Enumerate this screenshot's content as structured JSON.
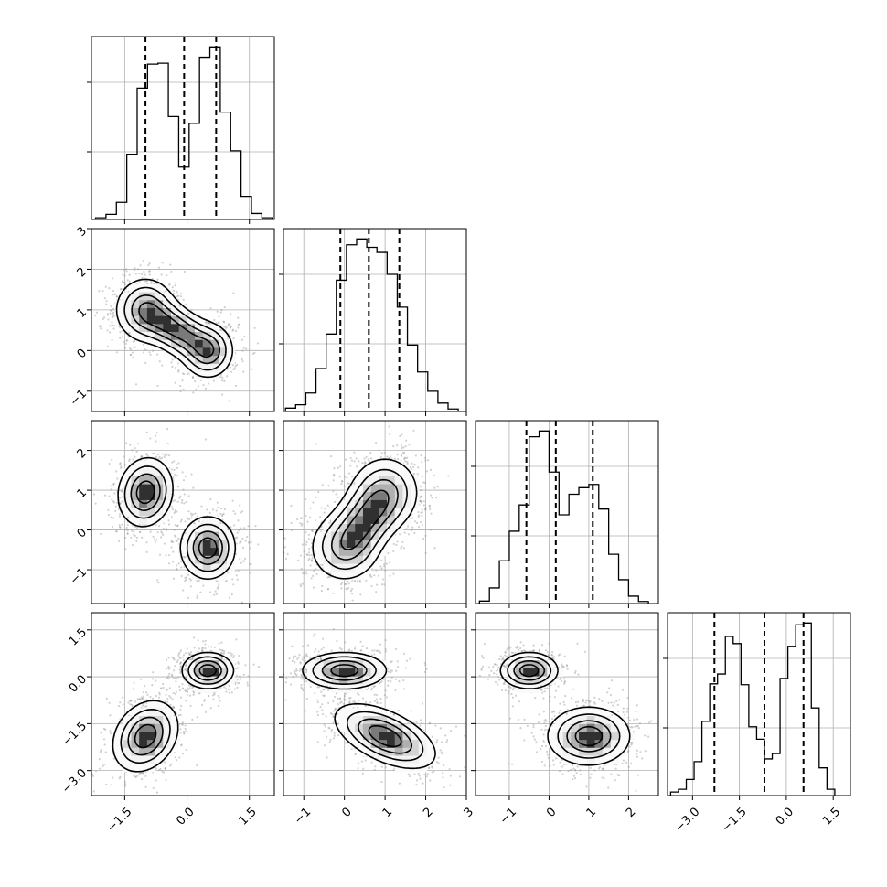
{
  "chart_data": {
    "type": "corner",
    "params": 4,
    "axis_ranges": [
      [
        -2.3,
        2.1
      ],
      [
        -1.5,
        3.0
      ],
      [
        -1.85,
        2.75
      ],
      [
        -3.8,
        2.05
      ]
    ],
    "tick_values": [
      [
        -1.5,
        0.0,
        1.5
      ],
      [
        -1,
        0,
        1,
        2,
        3
      ],
      [
        -1,
        0,
        1,
        2
      ],
      [
        -3.0,
        -1.5,
        0.0,
        1.5
      ]
    ],
    "tick_labels": [
      [
        "−1.5",
        "0.0",
        "1.5"
      ],
      [
        "−1",
        "0",
        "1",
        "2",
        "3"
      ],
      [
        "−1",
        "0",
        "1",
        "2"
      ],
      [
        "−3.0",
        "−1.5",
        "0.0",
        "1.5"
      ]
    ],
    "grid": true,
    "histograms": [
      {
        "param": 0,
        "bins": [
          -2.2,
          -1.95,
          -1.7,
          -1.45,
          -1.2,
          -0.95,
          -0.7,
          -0.45,
          -0.2,
          0.05,
          0.3,
          0.55,
          0.8,
          1.05,
          1.3,
          1.55,
          1.8,
          2.05
        ],
        "counts": [
          20,
          60,
          200,
          760,
          1530,
          1810,
          1820,
          1200,
          610,
          1120,
          1890,
          2010,
          1250,
          800,
          270,
          70,
          20
        ],
        "quantiles": [
          -1.0,
          -0.07,
          0.7
        ]
      },
      {
        "param": 1,
        "bins": [
          -1.45,
          -1.2,
          -0.95,
          -0.7,
          -0.45,
          -0.2,
          0.05,
          0.3,
          0.55,
          0.8,
          1.05,
          1.3,
          1.55,
          1.8,
          2.05,
          2.3,
          2.55,
          2.8
        ],
        "counts": [
          40,
          80,
          220,
          510,
          920,
          1560,
          1980,
          2050,
          1950,
          1890,
          1630,
          1240,
          790,
          470,
          240,
          100,
          30
        ],
        "quantiles": [
          -0.1,
          0.6,
          1.35
        ]
      },
      {
        "param": 2,
        "bins": [
          -1.75,
          -1.5,
          -1.25,
          -1.0,
          -0.75,
          -0.5,
          -0.25,
          0.0,
          0.25,
          0.5,
          0.75,
          1.0,
          1.25,
          1.5,
          1.75,
          2.0,
          2.25,
          2.5
        ],
        "counts": [
          30,
          190,
          520,
          880,
          1200,
          2030,
          2100,
          1600,
          1080,
          1330,
          1410,
          1450,
          1150,
          600,
          290,
          90,
          25
        ],
        "quantiles": [
          -0.57,
          0.17,
          1.1
        ]
      },
      {
        "param": 3,
        "bins": [
          -3.7,
          -3.45,
          -3.2,
          -2.95,
          -2.7,
          -2.45,
          -2.2,
          -1.95,
          -1.7,
          -1.45,
          -1.2,
          -0.95,
          -0.7,
          -0.45,
          -0.2,
          0.05,
          0.3,
          0.55,
          0.8,
          1.05,
          1.3,
          1.55
        ],
        "counts": [
          40,
          70,
          180,
          380,
          830,
          1250,
          1360,
          1780,
          1700,
          1240,
          770,
          630,
          410,
          470,
          1310,
          1670,
          1910,
          1930,
          980,
          310,
          70
        ],
        "quantiles": [
          -2.3,
          -0.7,
          0.55
        ]
      }
    ],
    "scatter_panels": [
      {
        "x": 0,
        "y": 1,
        "modes": [
          {
            "mx": -1.0,
            "my": 1.0,
            "sx": 0.35,
            "sy": 0.38,
            "rho": 0.0
          },
          {
            "mx": 0.5,
            "my": 0.0,
            "sx": 0.3,
            "sy": 0.33,
            "rho": 0.0
          }
        ],
        "bridge": true
      },
      {
        "x": 0,
        "y": 2,
        "modes": [
          {
            "mx": -1.0,
            "my": 0.95,
            "sx": 0.32,
            "sy": 0.42,
            "rho": 0.1
          },
          {
            "mx": 0.5,
            "my": -0.45,
            "sx": 0.32,
            "sy": 0.38,
            "rho": 0.0
          }
        ],
        "bridge": false
      },
      {
        "x": 0,
        "y": 3,
        "modes": [
          {
            "mx": 0.5,
            "my": 0.2,
            "sx": 0.3,
            "sy": 0.28,
            "rho": 0.0
          },
          {
            "mx": -1.0,
            "my": -1.9,
            "sx": 0.38,
            "sy": 0.55,
            "rho": 0.25
          }
        ],
        "bridge": false
      },
      {
        "x": 1,
        "y": 2,
        "modes": [
          {
            "mx": 0.0,
            "my": -0.45,
            "sx": 0.42,
            "sy": 0.42,
            "rho": 0.0
          },
          {
            "mx": 1.0,
            "my": 0.95,
            "sx": 0.42,
            "sy": 0.45,
            "rho": 0.0
          }
        ],
        "bridge": true
      },
      {
        "x": 1,
        "y": 3,
        "modes": [
          {
            "mx": 0.0,
            "my": 0.2,
            "sx": 0.5,
            "sy": 0.28,
            "rho": 0.0
          },
          {
            "mx": 1.0,
            "my": -1.9,
            "sx": 0.6,
            "sy": 0.5,
            "rho": -0.55
          }
        ],
        "bridge": false
      },
      {
        "x": 2,
        "y": 3,
        "modes": [
          {
            "mx": -0.5,
            "my": 0.2,
            "sx": 0.35,
            "sy": 0.28,
            "rho": 0.0
          },
          {
            "mx": 1.0,
            "my": -1.9,
            "sx": 0.5,
            "sy": 0.45,
            "rho": 0.0
          }
        ],
        "bridge": false
      }
    ]
  }
}
